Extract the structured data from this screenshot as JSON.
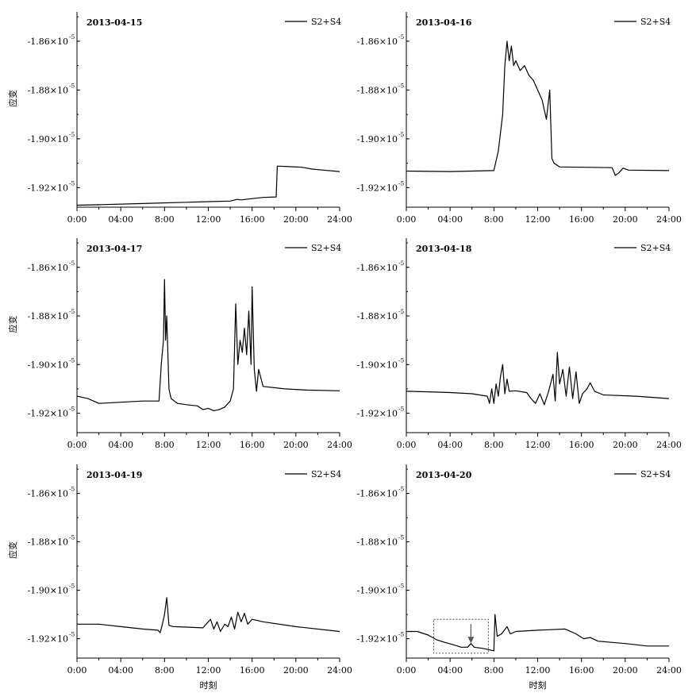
{
  "chart_data": [
    {
      "type": "line",
      "title": "2013-04-15",
      "ylabel": "应变",
      "xlabel": "",
      "x_ticks": [
        "0:00",
        "04:00",
        "8:00",
        "12:00",
        "16:00",
        "20:00",
        "24:00"
      ],
      "y_ticks": [
        {
          "mantissa": "-1.86×10",
          "exp": "-5",
          "value": -1.86
        },
        {
          "mantissa": "-1.88×10",
          "exp": "-5",
          "value": -1.88
        },
        {
          "mantissa": "-1.90×10",
          "exp": "-5",
          "value": -1.9
        },
        {
          "mantissa": "-1.92×10",
          "exp": "-5",
          "value": -1.92
        }
      ],
      "xlim": [
        0,
        24
      ],
      "ylim": [
        -1.928,
        -1.848
      ],
      "y_unit_scale": "×10^-5",
      "legend": "top-right",
      "series": [
        {
          "name": "S2+S4",
          "x": [
            0,
            2,
            6,
            10,
            14,
            14.6,
            15,
            16,
            17,
            18.2,
            18.3,
            18.5,
            19.5,
            20.5,
            21.5,
            22.5,
            24
          ],
          "y": [
            -1.9272,
            -1.927,
            -1.9265,
            -1.926,
            -1.9255,
            -1.9248,
            -1.925,
            -1.9245,
            -1.924,
            -1.9238,
            -1.9112,
            -1.9112,
            -1.9114,
            -1.9116,
            -1.9124,
            -1.9128,
            -1.9134
          ]
        }
      ]
    },
    {
      "type": "line",
      "title": "2013-04-16",
      "ylabel": "",
      "xlabel": "",
      "x_ticks": [
        "0:00",
        "04:00",
        "8:00",
        "12:00",
        "16:00",
        "20:00",
        "24:00"
      ],
      "y_ticks": [
        {
          "mantissa": "-1.86×10",
          "exp": "-5",
          "value": -1.86
        },
        {
          "mantissa": "-1.88×10",
          "exp": "-5",
          "value": -1.88
        },
        {
          "mantissa": "-1.90×10",
          "exp": "-5",
          "value": -1.9
        },
        {
          "mantissa": "-1.92×10",
          "exp": "-5",
          "value": -1.92
        }
      ],
      "xlim": [
        0,
        24
      ],
      "ylim": [
        -1.928,
        -1.848
      ],
      "y_unit_scale": "×10^-5",
      "legend": "top-right",
      "series": [
        {
          "name": "S2+S4",
          "x": [
            0,
            4,
            8,
            8.4,
            8.8,
            9.0,
            9.2,
            9.4,
            9.6,
            9.8,
            10.0,
            10.4,
            10.8,
            11.2,
            11.6,
            12.0,
            12.4,
            12.8,
            13.1,
            13.3,
            13.5,
            14,
            18.8,
            19.1,
            19.4,
            19.8,
            20.3,
            24
          ],
          "y": [
            -1.9132,
            -1.9134,
            -1.913,
            -1.905,
            -1.89,
            -1.87,
            -1.86,
            -1.868,
            -1.862,
            -1.87,
            -1.868,
            -1.872,
            -1.87,
            -1.874,
            -1.876,
            -1.88,
            -1.884,
            -1.892,
            -1.88,
            -1.908,
            -1.91,
            -1.9115,
            -1.9118,
            -1.915,
            -1.914,
            -1.912,
            -1.9128,
            -1.913
          ]
        }
      ]
    },
    {
      "type": "line",
      "title": "2013-04-17",
      "ylabel": "应变",
      "xlabel": "",
      "x_ticks": [
        "0:00",
        "04:00",
        "8:00",
        "12:00",
        "16:00",
        "20:00",
        "24:00"
      ],
      "y_ticks": [
        {
          "mantissa": "-1.86×10",
          "exp": "-5",
          "value": -1.86
        },
        {
          "mantissa": "-1.88×10",
          "exp": "-5",
          "value": -1.88
        },
        {
          "mantissa": "-1.90×10",
          "exp": "-5",
          "value": -1.9
        },
        {
          "mantissa": "-1.92×10",
          "exp": "-5",
          "value": -1.92
        }
      ],
      "xlim": [
        0,
        24
      ],
      "ylim": [
        -1.928,
        -1.848
      ],
      "y_unit_scale": "×10^-5",
      "legend": "top-right",
      "series": [
        {
          "name": "S2+S4",
          "x": [
            0,
            1,
            2,
            4,
            6,
            7.5,
            7.7,
            7.9,
            8.0,
            8.1,
            8.2,
            8.4,
            8.6,
            8.9,
            9.2,
            10,
            11,
            11.5,
            12,
            12.5,
            13,
            13.5,
            14,
            14.3,
            14.5,
            14.7,
            14.9,
            15.1,
            15.3,
            15.5,
            15.7,
            15.9,
            16.0,
            16.2,
            16.4,
            16.6,
            17,
            19,
            21,
            24
          ],
          "y": [
            -1.913,
            -1.914,
            -1.916,
            -1.9155,
            -1.915,
            -1.915,
            -1.9,
            -1.89,
            -1.865,
            -1.89,
            -1.88,
            -1.91,
            -1.914,
            -1.915,
            -1.916,
            -1.9165,
            -1.917,
            -1.9185,
            -1.918,
            -1.919,
            -1.9185,
            -1.9175,
            -1.915,
            -1.91,
            -1.875,
            -1.9,
            -1.89,
            -1.895,
            -1.885,
            -1.896,
            -1.878,
            -1.9,
            -1.868,
            -1.902,
            -1.911,
            -1.902,
            -1.909,
            -1.91,
            -1.9105,
            -1.9108
          ]
        }
      ]
    },
    {
      "type": "line",
      "title": "2013-04-18",
      "ylabel": "",
      "xlabel": "",
      "x_ticks": [
        "0:00",
        "04:00",
        "8:00",
        "12:00",
        "16:00",
        "20:00",
        "24:00"
      ],
      "y_ticks": [
        {
          "mantissa": "-1.86×10",
          "exp": "-5",
          "value": -1.86
        },
        {
          "mantissa": "-1.88×10",
          "exp": "-5",
          "value": -1.88
        },
        {
          "mantissa": "-1.90×10",
          "exp": "-5",
          "value": -1.9
        },
        {
          "mantissa": "-1.92×10",
          "exp": "-5",
          "value": -1.92
        }
      ],
      "xlim": [
        0,
        24
      ],
      "ylim": [
        -1.928,
        -1.848
      ],
      "y_unit_scale": "×10^-5",
      "legend": "top-right",
      "series": [
        {
          "name": "S2+S4",
          "x": [
            0,
            2,
            4,
            6,
            7.4,
            7.6,
            7.8,
            8.0,
            8.2,
            8.4,
            8.6,
            8.8,
            9.0,
            9.2,
            9.4,
            10,
            11,
            11.4,
            11.8,
            12.2,
            12.6,
            13.0,
            13.4,
            13.6,
            13.8,
            14.0,
            14.3,
            14.6,
            14.9,
            15.2,
            15.5,
            15.8,
            16.1,
            16.5,
            16.8,
            17.2,
            18,
            21,
            24
          ],
          "y": [
            -1.911,
            -1.9112,
            -1.9115,
            -1.912,
            -1.913,
            -1.916,
            -1.91,
            -1.916,
            -1.908,
            -1.913,
            -1.905,
            -1.9,
            -1.912,
            -1.906,
            -1.911,
            -1.9108,
            -1.9115,
            -1.914,
            -1.916,
            -1.912,
            -1.9165,
            -1.911,
            -1.904,
            -1.915,
            -1.895,
            -1.908,
            -1.902,
            -1.913,
            -1.901,
            -1.914,
            -1.903,
            -1.916,
            -1.912,
            -1.91,
            -1.9075,
            -1.911,
            -1.9125,
            -1.913,
            -1.914
          ]
        }
      ]
    },
    {
      "type": "line",
      "title": "2013-04-19",
      "ylabel": "应变",
      "xlabel": "时刻",
      "x_ticks": [
        "0:00",
        "04:00",
        "8:00",
        "12:00",
        "16:00",
        "20:00",
        "24:00"
      ],
      "y_ticks": [
        {
          "mantissa": "-1.86×10",
          "exp": "-5",
          "value": -1.86
        },
        {
          "mantissa": "-1.88×10",
          "exp": "-5",
          "value": -1.88
        },
        {
          "mantissa": "-1.90×10",
          "exp": "-5",
          "value": -1.9
        },
        {
          "mantissa": "-1.92×10",
          "exp": "-5",
          "value": -1.92
        }
      ],
      "xlim": [
        0,
        24
      ],
      "ylim": [
        -1.928,
        -1.848
      ],
      "y_unit_scale": "×10^-5",
      "legend": "top-right",
      "series": [
        {
          "name": "S2+S4",
          "x": [
            0,
            2,
            4,
            6,
            7.4,
            7.6,
            7.8,
            8.0,
            8.2,
            8.4,
            8.8,
            10,
            11.5,
            12.2,
            12.5,
            12.8,
            13.1,
            13.5,
            13.8,
            14.1,
            14.4,
            14.7,
            15.0,
            15.3,
            15.6,
            16.0,
            17,
            20,
            24
          ],
          "y": [
            -1.914,
            -1.914,
            -1.915,
            -1.916,
            -1.9165,
            -1.9175,
            -1.914,
            -1.91,
            -1.903,
            -1.9145,
            -1.915,
            -1.9152,
            -1.9155,
            -1.912,
            -1.916,
            -1.913,
            -1.917,
            -1.914,
            -1.915,
            -1.911,
            -1.916,
            -1.909,
            -1.913,
            -1.9095,
            -1.914,
            -1.912,
            -1.913,
            -1.915,
            -1.917
          ]
        }
      ]
    },
    {
      "type": "line",
      "title": "2013-04-20",
      "ylabel": "",
      "xlabel": "时刻",
      "x_ticks": [
        "0:00",
        "04:00",
        "8:00",
        "12:00",
        "16:00",
        "20:00",
        "24:00"
      ],
      "y_ticks": [
        {
          "mantissa": "-1.86×10",
          "exp": "-5",
          "value": -1.86
        },
        {
          "mantissa": "-1.88×10",
          "exp": "-5",
          "value": -1.88
        },
        {
          "mantissa": "-1.90×10",
          "exp": "-5",
          "value": -1.9
        },
        {
          "mantissa": "-1.92×10",
          "exp": "-5",
          "value": -1.92
        }
      ],
      "xlim": [
        0,
        24
      ],
      "ylim": [
        -1.928,
        -1.848
      ],
      "y_unit_scale": "×10^-5",
      "legend": "top-right",
      "annotations": [
        {
          "type": "dotted-box",
          "x0": 2.5,
          "x1": 7.5,
          "y0": -1.912,
          "y1": -1.926
        },
        {
          "type": "arrow",
          "x": 5.9,
          "y": -1.9225
        }
      ],
      "series": [
        {
          "name": "S2+S4",
          "x": [
            0,
            1,
            2,
            2.8,
            3.5,
            4.3,
            5.0,
            5.6,
            5.9,
            6.2,
            7.0,
            8.0,
            8.1,
            8.3,
            8.7,
            9.2,
            9.5,
            10,
            12,
            13,
            14.5,
            15.5,
            16.2,
            16.8,
            17.5,
            20,
            22,
            24
          ],
          "y": [
            -1.917,
            -1.917,
            -1.9185,
            -1.9205,
            -1.9215,
            -1.9225,
            -1.9235,
            -1.9235,
            -1.922,
            -1.9235,
            -1.924,
            -1.925,
            -1.91,
            -1.919,
            -1.918,
            -1.915,
            -1.918,
            -1.917,
            -1.9165,
            -1.9163,
            -1.916,
            -1.918,
            -1.92,
            -1.9195,
            -1.921,
            -1.922,
            -1.923,
            -1.923
          ]
        }
      ]
    }
  ]
}
